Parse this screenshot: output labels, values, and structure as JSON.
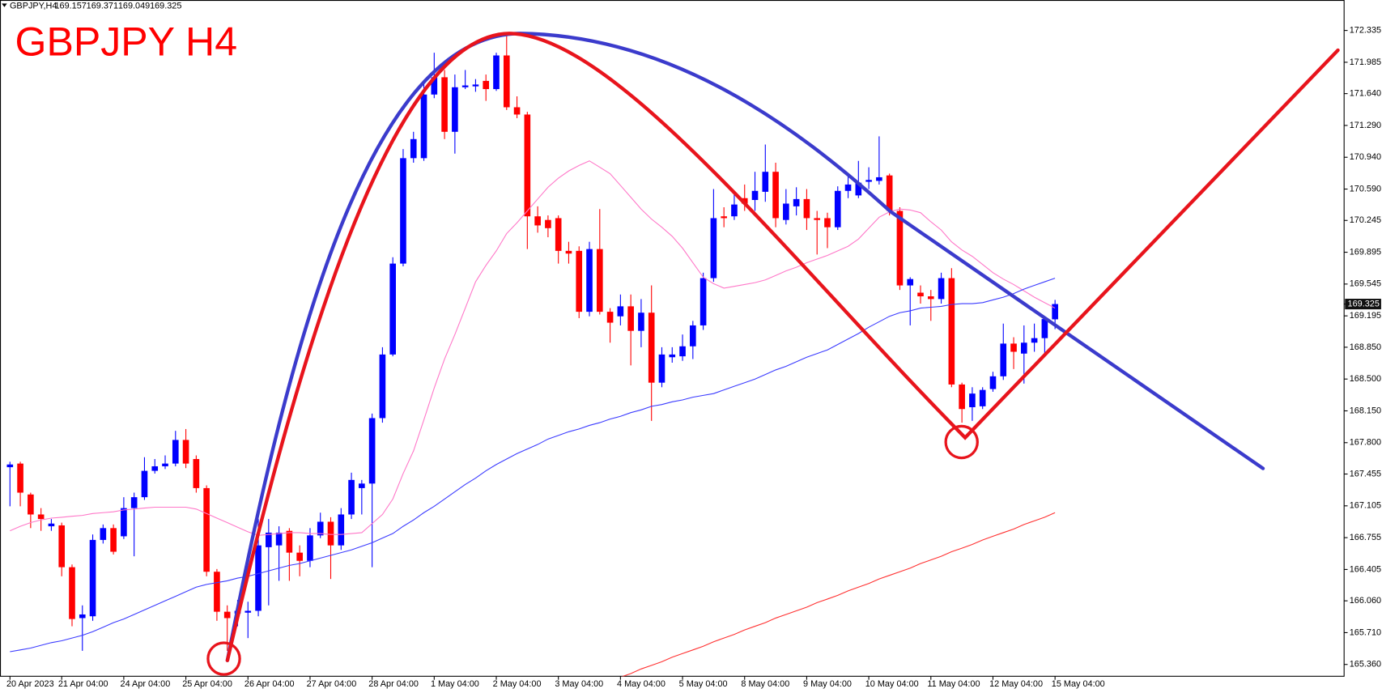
{
  "chart_data": {
    "type": "candlestick",
    "title": "GBPJPY H4",
    "symbol": "GBPJPY,H4",
    "up_color": "#0000ff",
    "down_color": "#ff0000",
    "ylim": [
      165.23,
      172.67
    ],
    "yticks": [
      172.335,
      171.985,
      {
        "value": 171.64,
        "label": "171.640"
      },
      {
        "value": 171.29,
        "label": "171.290"
      },
      {
        "value": 170.94,
        "label": "170.940"
      },
      {
        "value": 170.59,
        "label": "170.590"
      },
      170.245,
      169.895,
      169.545,
      169.195,
      {
        "value": 168.85,
        "label": "168.850"
      },
      {
        "value": 168.5,
        "label": "168.500"
      },
      {
        "value": 168.15,
        "label": "168.150"
      },
      {
        "value": 167.8,
        "label": "167.800"
      },
      167.455,
      167.105,
      166.755,
      166.405,
      {
        "value": 166.06,
        "label": "166.060"
      },
      {
        "value": 165.71,
        "label": "165.710"
      },
      {
        "value": 165.36,
        "label": "165.360"
      }
    ],
    "categories": [
      "20 Apr 2023",
      null,
      null,
      null,
      null,
      "21 Apr 04:00",
      null,
      null,
      null,
      null,
      null,
      "24 Apr 04:00",
      null,
      null,
      null,
      null,
      null,
      "25 Apr 04:00",
      null,
      null,
      null,
      null,
      null,
      "26 Apr 04:00",
      null,
      null,
      null,
      null,
      null,
      "27 Apr 04:00",
      null,
      null,
      null,
      null,
      null,
      "28 Apr 04:00",
      null,
      null,
      null,
      null,
      null,
      "1 May 04:00",
      null,
      null,
      null,
      null,
      null,
      "2 May 04:00",
      null,
      null,
      null,
      null,
      null,
      "3 May 04:00",
      null,
      null,
      null,
      null,
      null,
      "4 May 04:00",
      null,
      null,
      null,
      null,
      null,
      "5 May 04:00",
      null,
      null,
      null,
      null,
      null,
      "8 May 04:00",
      null,
      null,
      null,
      null,
      null,
      "9 May 04:00",
      null,
      null,
      null,
      null,
      null,
      "10 May 04:00",
      null,
      null,
      null,
      null,
      null,
      "11 May 04:00",
      null,
      null,
      null,
      null,
      null,
      "12 May 04:00",
      null,
      null,
      null,
      null,
      null,
      "15 May 04:00"
    ],
    "open": [
      167.53,
      167.57,
      167.23,
      167.01,
      166.88,
      166.89,
      166.43,
      165.87,
      165.89,
      166.73,
      166.86,
      166.77,
      167.08,
      167.2,
      167.49,
      167.54,
      167.57,
      167.83,
      167.62,
      167.3,
      166.38,
      165.94,
      165.92,
      165.93,
      165.95,
      166.65,
      166.67,
      166.83,
      166.59,
      166.5,
      166.78,
      166.93,
      166.67,
      167.01,
      167.3,
      167.35,
      168.07,
      168.77,
      169.77,
      170.93,
      170.93,
      171.63,
      171.82,
      171.22,
      171.71,
      171.72,
      171.78,
      171.69,
      172.06,
      171.49,
      171.41,
      170.29,
      170.25,
      170.27,
      169.91,
      169.91,
      169.24,
      169.93,
      169.24,
      169.19,
      169.3,
      169.03,
      169.23,
      168.46,
      168.74,
      168.75,
      168.86,
      169.09,
      169.61,
      170.29,
      170.29,
      170.49,
      170.47,
      170.56,
      170.78,
      170.25,
      170.4,
      170.48,
      170.27,
      170.27,
      170.17,
      170.57,
      170.52,
      170.67,
      170.68,
      170.74,
      170.35,
      169.53,
      169.45,
      169.41,
      169.38,
      169.61,
      168.44,
      168.19,
      168.2,
      168.39,
      168.53,
      168.89,
      168.78,
      168.9,
      168.95,
      169.157
    ],
    "high": [
      167.59,
      167.59,
      167.25,
      167.08,
      166.96,
      166.92,
      166.46,
      166.01,
      166.79,
      166.9,
      166.9,
      167.2,
      167.25,
      167.64,
      167.62,
      167.66,
      167.93,
      167.95,
      167.66,
      167.33,
      166.41,
      166.01,
      166.07,
      166.05,
      166.96,
      166.96,
      166.88,
      166.86,
      166.67,
      166.86,
      167.03,
      166.98,
      167.08,
      167.47,
      167.39,
      168.12,
      168.85,
      169.84,
      171.03,
      171.22,
      171.75,
      172.09,
      171.9,
      171.85,
      171.9,
      171.8,
      171.85,
      172.09,
      172.29,
      171.61,
      171.44,
      170.4,
      170.3,
      170.3,
      170.01,
      169.96,
      170.01,
      170.37,
      169.28,
      169.43,
      169.43,
      169.38,
      169.53,
      168.85,
      168.85,
      168.99,
      169.14,
      169.67,
      170.59,
      170.39,
      170.56,
      170.64,
      170.78,
      171.08,
      170.88,
      170.59,
      170.61,
      170.59,
      170.35,
      170.33,
      170.62,
      170.74,
      170.9,
      170.83,
      171.17,
      170.76,
      170.39,
      169.62,
      169.53,
      169.48,
      169.67,
      169.72,
      168.46,
      168.41,
      168.41,
      168.58,
      169.11,
      168.96,
      169.09,
      169.11,
      169.19,
      169.371
    ],
    "low": [
      167.1,
      167.1,
      166.86,
      166.83,
      166.83,
      166.33,
      165.78,
      165.51,
      165.84,
      166.69,
      166.57,
      166.74,
      166.55,
      167.17,
      167.46,
      167.51,
      167.54,
      167.52,
      167.25,
      166.33,
      165.84,
      165.51,
      165.78,
      165.65,
      165.89,
      166.01,
      166.28,
      166.28,
      166.33,
      166.43,
      166.75,
      166.3,
      166.62,
      166.96,
      167.01,
      166.43,
      168.02,
      168.75,
      169.74,
      170.88,
      170.9,
      171.59,
      171.14,
      170.98,
      171.69,
      171.66,
      171.56,
      171.67,
      171.46,
      171.37,
      169.93,
      170.11,
      170.06,
      169.77,
      169.77,
      169.17,
      169.19,
      169.21,
      168.9,
      169.09,
      168.65,
      168.85,
      168.04,
      168.41,
      168.68,
      168.7,
      168.72,
      169.04,
      169.57,
      170.17,
      170.25,
      170.35,
      170.35,
      170.45,
      170.17,
      170.2,
      170.3,
      170.14,
      169.87,
      169.94,
      170.14,
      170.49,
      170.49,
      170.59,
      170.64,
      170.3,
      169.48,
      169.09,
      169.33,
      169.14,
      169.33,
      168.41,
      168.02,
      168.04,
      168.17,
      168.36,
      168.49,
      168.61,
      168.45,
      168.8,
      168.78,
      169.049
    ],
    "close": [
      167.56,
      167.25,
      167.01,
      166.96,
      166.91,
      166.43,
      165.86,
      165.91,
      166.73,
      166.86,
      166.6,
      167.08,
      167.2,
      167.49,
      167.54,
      167.57,
      167.83,
      167.57,
      167.3,
      166.38,
      165.94,
      165.87,
      165.95,
      165.95,
      166.67,
      166.81,
      166.81,
      166.59,
      166.5,
      166.78,
      166.93,
      166.67,
      167.01,
      167.39,
      167.35,
      168.07,
      168.77,
      169.77,
      170.93,
      171.14,
      171.63,
      171.82,
      171.22,
      171.71,
      171.73,
      171.74,
      171.69,
      172.06,
      171.49,
      171.41,
      170.29,
      170.19,
      170.16,
      169.91,
      169.88,
      169.24,
      169.93,
      169.24,
      169.12,
      169.3,
      169.03,
      169.23,
      168.46,
      168.77,
      168.77,
      168.86,
      169.09,
      169.61,
      170.27,
      170.27,
      170.42,
      170.43,
      170.57,
      170.78,
      170.27,
      170.43,
      170.48,
      170.27,
      170.25,
      170.17,
      170.57,
      170.64,
      170.66,
      170.69,
      170.72,
      170.35,
      169.53,
      169.6,
      169.41,
      169.38,
      169.61,
      168.44,
      168.17,
      168.34,
      168.38,
      168.53,
      168.89,
      168.8,
      168.9,
      168.95,
      169.16,
      169.325
    ],
    "lines": [
      {
        "color": "#ff77c8",
        "values": [
          166.83,
          166.88,
          166.92,
          166.95,
          166.97,
          166.98,
          166.99,
          167.0,
          167.02,
          167.03,
          167.04,
          167.06,
          167.07,
          167.08,
          167.09,
          167.09,
          167.09,
          167.09,
          167.07,
          167.02,
          166.97,
          166.92,
          166.87,
          166.82,
          166.78,
          166.79,
          166.8,
          166.81,
          166.81,
          166.8,
          166.8,
          166.79,
          166.79,
          166.8,
          166.81,
          166.91,
          167.01,
          167.18,
          167.46,
          167.71,
          168.05,
          168.4,
          168.72,
          168.99,
          169.28,
          169.57,
          169.75,
          169.91,
          170.1,
          170.22,
          170.35,
          170.48,
          170.61,
          170.71,
          170.79,
          170.85,
          170.9,
          170.83,
          170.76,
          170.63,
          170.5,
          170.37,
          170.26,
          170.17,
          170.07,
          169.94,
          169.78,
          169.62,
          169.55,
          169.5,
          169.52,
          169.54,
          169.56,
          169.59,
          169.64,
          169.69,
          169.73,
          169.78,
          169.82,
          169.86,
          169.91,
          169.96,
          170.04,
          170.16,
          170.28,
          170.34,
          170.37,
          170.36,
          170.33,
          170.23,
          170.14,
          170.01,
          169.92,
          169.85,
          169.76,
          169.67,
          169.6,
          169.54,
          169.47,
          169.4,
          169.34,
          169.28
        ]
      },
      {
        "color": "#3a3aff",
        "values": [
          165.5,
          165.52,
          165.54,
          165.57,
          165.6,
          165.62,
          165.65,
          165.68,
          165.72,
          165.77,
          165.82,
          165.86,
          165.91,
          165.96,
          166.01,
          166.06,
          166.11,
          166.16,
          166.21,
          166.24,
          166.26,
          166.28,
          166.31,
          166.33,
          166.36,
          166.39,
          166.42,
          166.45,
          166.47,
          166.5,
          166.53,
          166.56,
          166.59,
          166.62,
          166.66,
          166.7,
          166.75,
          166.8,
          166.88,
          166.95,
          167.03,
          167.1,
          167.18,
          167.26,
          167.34,
          167.41,
          167.49,
          167.56,
          167.62,
          167.68,
          167.73,
          167.78,
          167.84,
          167.88,
          167.92,
          167.95,
          167.99,
          168.02,
          168.06,
          168.09,
          168.13,
          168.16,
          168.2,
          168.22,
          168.25,
          168.27,
          168.3,
          168.32,
          168.34,
          168.38,
          168.42,
          168.46,
          168.5,
          168.55,
          168.6,
          168.64,
          168.69,
          168.74,
          168.78,
          168.82,
          168.88,
          168.94,
          169.0,
          169.07,
          169.13,
          169.19,
          169.23,
          169.25,
          169.28,
          169.29,
          169.3,
          169.32,
          169.33,
          169.33,
          169.34,
          169.37,
          169.4,
          169.44,
          169.49,
          169.53,
          169.57,
          169.61
        ]
      },
      {
        "color": "#ff3030",
        "values": [
          null,
          null,
          null,
          null,
          null,
          null,
          null,
          null,
          null,
          null,
          null,
          null,
          null,
          null,
          null,
          null,
          null,
          null,
          null,
          null,
          null,
          null,
          null,
          null,
          null,
          null,
          null,
          null,
          null,
          null,
          null,
          null,
          null,
          null,
          null,
          null,
          null,
          null,
          null,
          null,
          null,
          null,
          null,
          null,
          null,
          null,
          null,
          null,
          null,
          null,
          null,
          null,
          null,
          null,
          null,
          null,
          null,
          null,
          null,
          165.22,
          165.26,
          165.31,
          165.35,
          165.39,
          165.44,
          165.48,
          165.52,
          165.56,
          165.61,
          165.65,
          165.69,
          165.74,
          165.78,
          165.82,
          165.87,
          165.91,
          165.95,
          165.99,
          166.04,
          166.08,
          166.12,
          166.17,
          166.21,
          166.25,
          166.3,
          166.34,
          166.38,
          166.42,
          166.47,
          166.51,
          166.55,
          166.6,
          166.64,
          166.68,
          166.73,
          166.77,
          166.81,
          166.85,
          166.9,
          166.94,
          166.98,
          167.03
        ]
      }
    ]
  }
}
